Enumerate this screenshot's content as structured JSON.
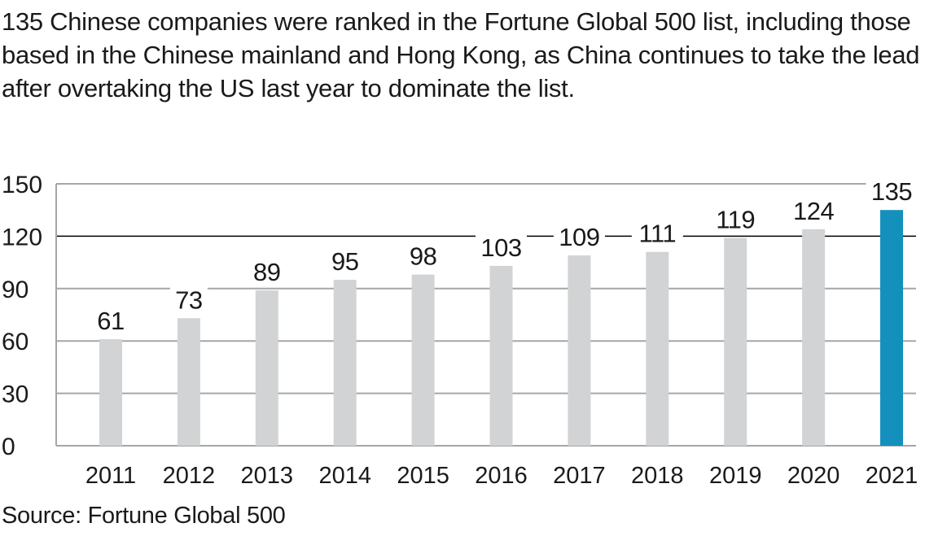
{
  "chart_data": {
    "type": "bar",
    "title": "135 Chinese companies were ranked in the Fortune Global 500 list, including those based in the Chinese mainland and Hong Kong, as China continues to take the lead after overtaking the US last year to dominate the list.",
    "source": "Source: Fortune Global 500",
    "categories": [
      "2011",
      "2012",
      "2013",
      "2014",
      "2015",
      "2016",
      "2017",
      "2018",
      "2019",
      "2020",
      "2021"
    ],
    "values": [
      61,
      73,
      89,
      95,
      98,
      103,
      109,
      111,
      119,
      124,
      135
    ],
    "xlabel": "",
    "ylabel": "",
    "ylim": [
      0,
      150
    ],
    "yticks": [
      0,
      30,
      60,
      90,
      120,
      150
    ],
    "grid": true,
    "highlight_gridline": 120,
    "colors": {
      "bar": "#d2d3d5",
      "highlight": "#1390bb",
      "grid": "#a6a6a6",
      "highlight_grid": "#000000"
    },
    "highlight_category": "2021"
  }
}
